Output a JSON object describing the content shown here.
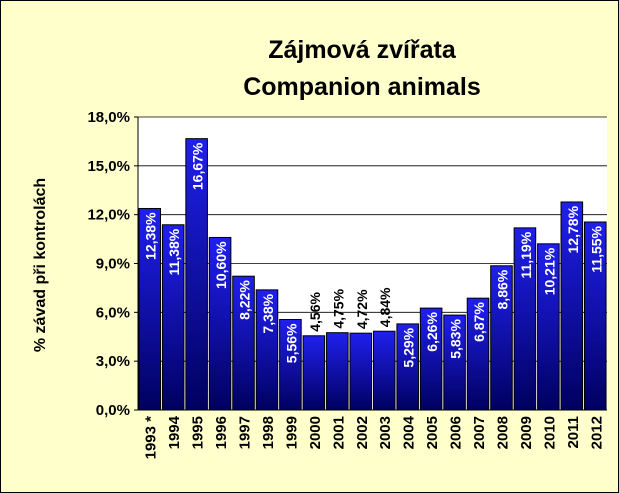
{
  "chart_data": {
    "type": "bar",
    "title": [
      "Zájmová zvířata",
      "Companion animals"
    ],
    "y_label": "% závad při kontrolách",
    "categories": [
      "1993 *",
      "1994",
      "1995",
      "1996",
      "1997",
      "1998",
      "1999",
      "2000",
      "2001",
      "2002",
      "2003",
      "2004",
      "2005",
      "2006",
      "2007",
      "2008",
      "2009",
      "2010",
      "2011",
      "2012"
    ],
    "values": [
      12.38,
      11.38,
      16.67,
      10.6,
      8.22,
      7.38,
      5.56,
      4.56,
      4.75,
      4.72,
      4.84,
      5.29,
      6.26,
      5.83,
      6.87,
      8.86,
      11.19,
      10.21,
      12.78,
      11.55
    ],
    "value_labels": [
      "12,38%",
      "11,38%",
      "16,67%",
      "10,60%",
      "8,22%",
      "7,38%",
      "5,56%",
      "4,56%",
      "4,75%",
      "4,72%",
      "4,84%",
      "5,29%",
      "6,26%",
      "5,83%",
      "6,87%",
      "8,86%",
      "11,19%",
      "10,21%",
      "12,78%",
      "11,55%"
    ],
    "color": "#1a1acc",
    "ylim": [
      0,
      18
    ],
    "yticks": [
      {
        "value": 0,
        "label": "0,0%"
      },
      {
        "value": 3,
        "label": "3,0%"
      },
      {
        "value": 6,
        "label": "6,0%"
      },
      {
        "value": 9,
        "label": "9,0%"
      },
      {
        "value": 12,
        "label": "12,0%"
      },
      {
        "value": 15,
        "label": "15,0%"
      },
      {
        "value": 18,
        "label": "18,0%"
      }
    ],
    "grid": true
  }
}
